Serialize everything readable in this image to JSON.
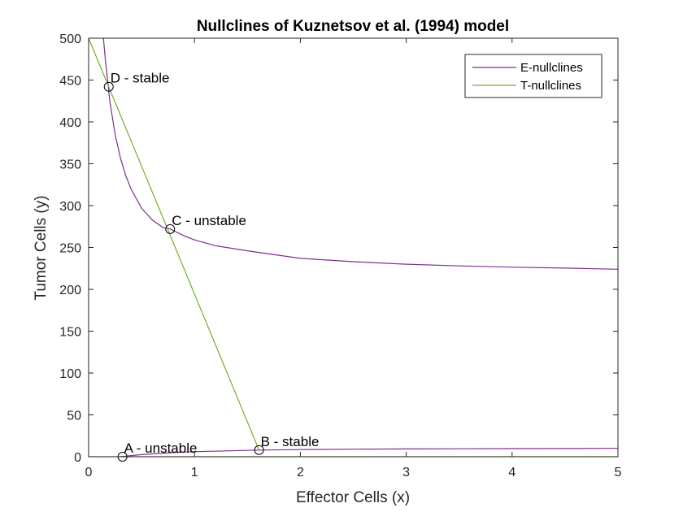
{
  "chart_data": {
    "type": "line",
    "title": "Nullclines of Kuznetsov et al. (1994) model",
    "xlabel": "Effector Cells (x)",
    "ylabel": "Tumor Cells (y)",
    "xlim": [
      0,
      5
    ],
    "ylim": [
      0,
      500
    ],
    "xticks": [
      0,
      1,
      2,
      3,
      4,
      5
    ],
    "yticks": [
      0,
      50,
      100,
      150,
      200,
      250,
      300,
      350,
      400,
      450,
      500
    ],
    "xtick_labels": [
      "0",
      "1",
      "2",
      "3",
      "4",
      "5"
    ],
    "ytick_labels": [
      "0",
      "50",
      "100",
      "150",
      "200",
      "250",
      "300",
      "350",
      "400",
      "450",
      "500"
    ],
    "grid": false,
    "legend_position": "top-right",
    "series": [
      {
        "name": "E-nullclines",
        "color": "#7e2f8e",
        "curves": [
          {
            "x": [
              0.14,
              0.16,
              0.18,
              0.2,
              0.25,
              0.3,
              0.35,
              0.4,
              0.5,
              0.6,
              0.7,
              0.77,
              0.9,
              1.0,
              1.2,
              1.5,
              2.0,
              2.5,
              3.0,
              3.5,
              4.0,
              4.5,
              5.0
            ],
            "y": [
              500,
              472,
              450,
              425,
              385,
              357,
              336,
              320,
              297,
              283,
              274,
              272,
              264,
              259,
              252,
              246,
              237,
              233,
              230,
              228,
              226.5,
              225.3,
              224
            ]
          },
          {
            "x": [
              0.3,
              0.5,
              0.8,
              1.0,
              1.3,
              1.6,
              2.0,
              2.5,
              3.0,
              3.5,
              4.0,
              4.5,
              5.0
            ],
            "y": [
              0,
              2.5,
              5,
              6,
              7,
              8,
              8.5,
              9,
              9.3,
              9.5,
              9.7,
              9.8,
              10
            ]
          }
        ]
      },
      {
        "name": "T-nullclines",
        "color": "#77ac30",
        "curves": [
          {
            "x": [
              0,
              1.61
            ],
            "y": [
              500,
              8
            ]
          },
          {
            "x": [
              0,
              5
            ],
            "y": [
              0,
              0
            ]
          }
        ]
      }
    ],
    "equilibria": [
      {
        "label": "A - unstable",
        "x": 0.32,
        "y": 0,
        "label_side": "right-up"
      },
      {
        "label": "B - stable",
        "x": 1.61,
        "y": 8,
        "label_side": "right-up"
      },
      {
        "label": "C - unstable",
        "x": 0.77,
        "y": 272,
        "label_side": "right-up"
      },
      {
        "label": "D - stable",
        "x": 0.19,
        "y": 442,
        "label_side": "right-up"
      }
    ]
  }
}
